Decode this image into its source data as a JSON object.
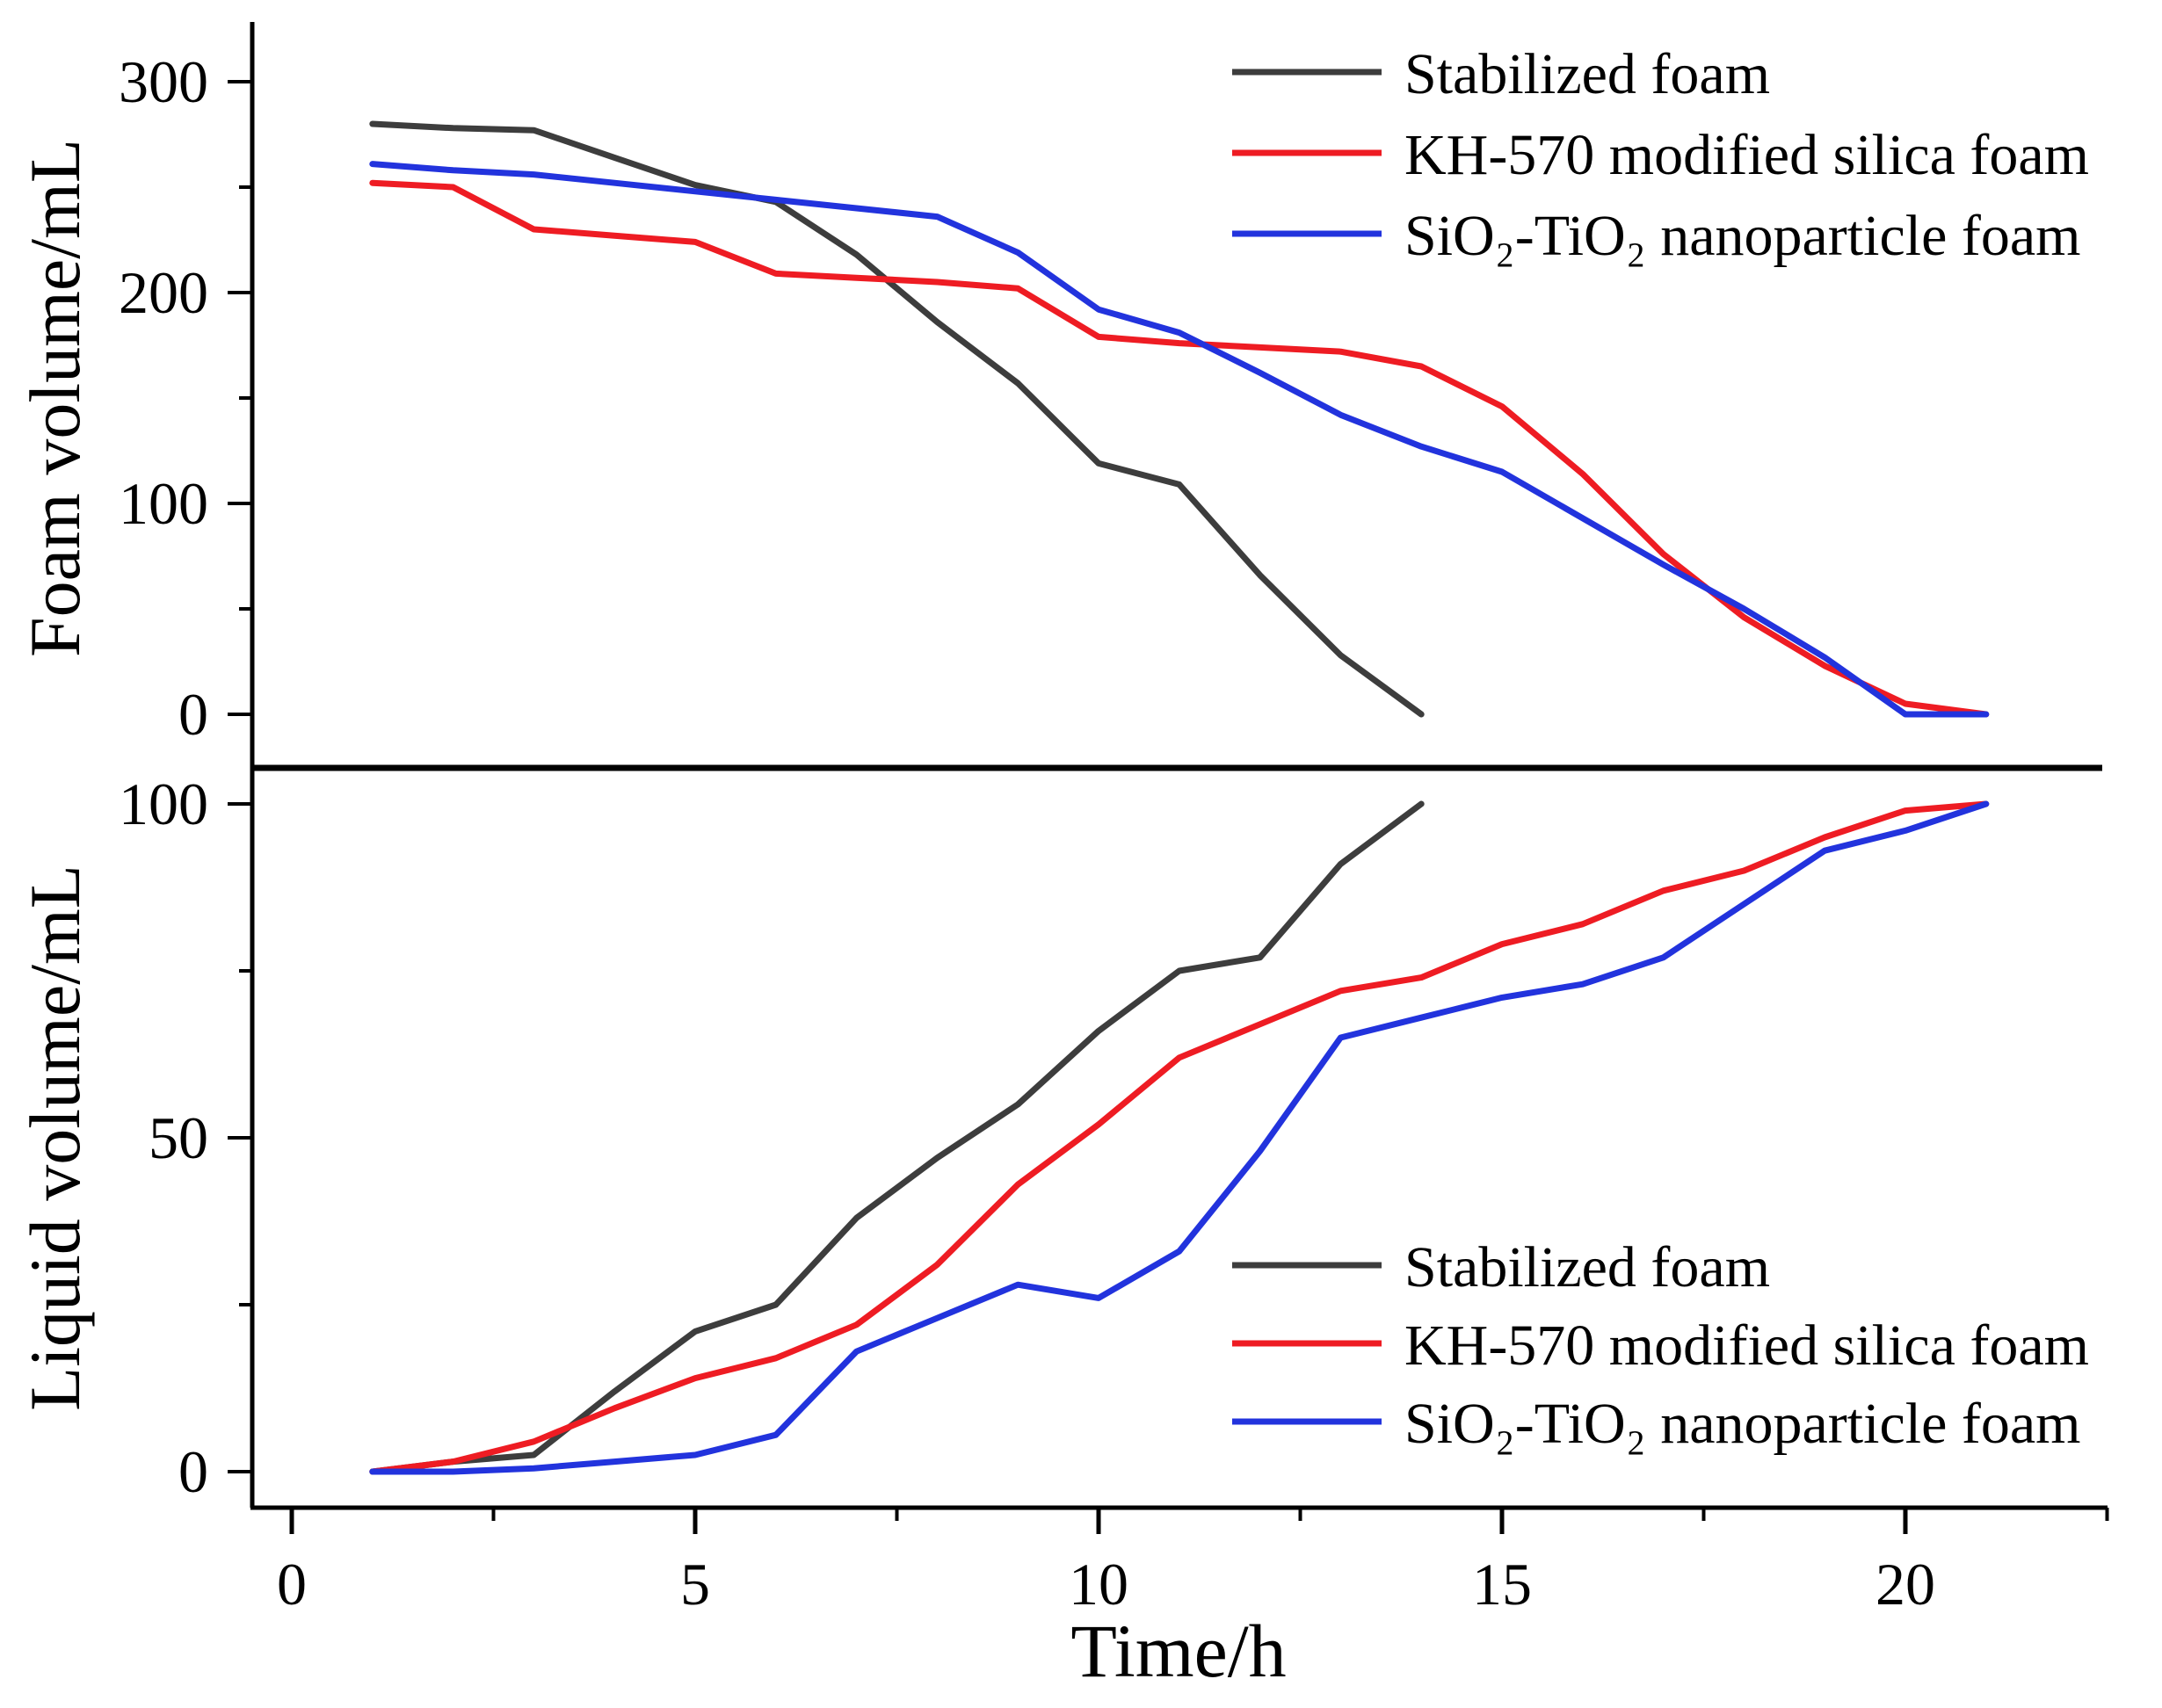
{
  "chart_data": [
    {
      "type": "line",
      "panel": "top",
      "title": "",
      "xlabel": "",
      "ylabel": "Foam volume/mL",
      "xlim": [
        -0.5,
        22.5
      ],
      "ylim": [
        0,
        325
      ],
      "grid": false,
      "yticks_major": [
        0,
        100,
        200,
        300
      ],
      "yticks_minor": [
        50,
        150,
        250
      ],
      "series": [
        {
          "key": "stabilized",
          "name": "Stabilized foam",
          "color": "#3d3d3d",
          "x": [
            1,
            2,
            3,
            4,
            5,
            6,
            7,
            8,
            9,
            10,
            11,
            12,
            13,
            14
          ],
          "y": [
            280,
            278,
            277,
            264,
            251,
            243,
            218,
            186,
            157,
            119,
            109,
            66,
            28,
            0
          ]
        },
        {
          "key": "kh570",
          "name": "KH-570 modified silica foam",
          "color": "#ee1c23",
          "x": [
            1,
            2,
            3,
            4,
            5,
            6,
            7,
            8,
            9,
            10,
            11,
            12,
            13,
            14,
            15,
            16,
            17,
            18,
            19,
            20,
            21
          ],
          "y": [
            252,
            250,
            230,
            227,
            224,
            209,
            207,
            205,
            202,
            179,
            176,
            174,
            172,
            165,
            146,
            114,
            76,
            46,
            23,
            5,
            0
          ]
        },
        {
          "key": "sio2tio2",
          "name": "SiO₂-TiO₂ nanoparticle foam",
          "color": "#2233dd",
          "x": [
            1,
            2,
            3,
            4,
            5,
            6,
            7,
            8,
            9,
            10,
            11,
            12,
            13,
            14,
            15,
            16,
            17,
            18,
            19,
            20,
            21
          ],
          "y": [
            261,
            258,
            256,
            252,
            248,
            244,
            240,
            236,
            219,
            192,
            181,
            162,
            142,
            127,
            115,
            93,
            71,
            50,
            27,
            0,
            0
          ]
        }
      ],
      "legend_position": "upper right"
    },
    {
      "type": "line",
      "panel": "bottom",
      "title": "",
      "xlabel": "Time/h",
      "ylabel": "Liquid volume/mL",
      "xlim": [
        -0.5,
        22.5
      ],
      "ylim": [
        0,
        105
      ],
      "grid": false,
      "xticks_major": [
        0,
        5,
        10,
        15,
        20
      ],
      "xticks_minor": [
        2.5,
        7.5,
        12.5,
        17.5,
        22.5
      ],
      "yticks_major": [
        0,
        50,
        100
      ],
      "yticks_minor": [
        25,
        75
      ],
      "series": [
        {
          "key": "stabilized",
          "name": "Stabilized foam",
          "color": "#3d3d3d",
          "x": [
            1,
            2,
            3,
            4,
            5,
            6,
            7,
            8,
            9,
            10,
            11,
            12,
            13,
            14
          ],
          "y": [
            0,
            1.5,
            2.5,
            12,
            21,
            25,
            38,
            47,
            55,
            66,
            75,
            77,
            91,
            100
          ]
        },
        {
          "key": "kh570",
          "name": "KH-570 modified silica foam",
          "color": "#ee1c23",
          "x": [
            1,
            2,
            3,
            4,
            5,
            6,
            7,
            8,
            9,
            10,
            11,
            12,
            13,
            14,
            15,
            16,
            17,
            18,
            19,
            20,
            21
          ],
          "y": [
            0,
            1.5,
            4.5,
            9.5,
            14,
            17,
            22,
            31,
            43,
            52,
            62,
            67,
            72,
            74,
            79,
            82,
            87,
            90,
            95,
            99,
            100
          ]
        },
        {
          "key": "sio2tio2",
          "name": "SiO₂-TiO₂ nanoparticle foam",
          "color": "#2233dd",
          "x": [
            1,
            2,
            3,
            4,
            5,
            6,
            7,
            8,
            9,
            10,
            11,
            12,
            13,
            14,
            15,
            16,
            17,
            18,
            19,
            20,
            21
          ],
          "y": [
            0,
            0,
            0.5,
            1.5,
            2.5,
            5.5,
            18,
            23,
            28,
            26,
            33,
            48,
            65,
            68,
            71,
            73,
            77,
            85,
            93,
            96,
            100
          ]
        }
      ],
      "legend_position": "lower right"
    }
  ],
  "legend": {
    "entries": [
      {
        "key": "stabilized",
        "label": "Stabilized foam",
        "color": "#3d3d3d"
      },
      {
        "key": "kh570",
        "label": "KH-570 modified silica foam",
        "color": "#ee1c23"
      },
      {
        "key": "sio2tio2",
        "label": "SiO₂-TiO₂ nanoparticle foam",
        "color": "#2233dd"
      }
    ]
  },
  "axis_color": "#000000",
  "xtick_labels": [
    "0",
    "5",
    "10",
    "15",
    "20"
  ],
  "top_ytick_labels": [
    "0",
    "100",
    "200",
    "300"
  ],
  "bottom_ytick_labels": [
    "0",
    "50",
    "100"
  ]
}
